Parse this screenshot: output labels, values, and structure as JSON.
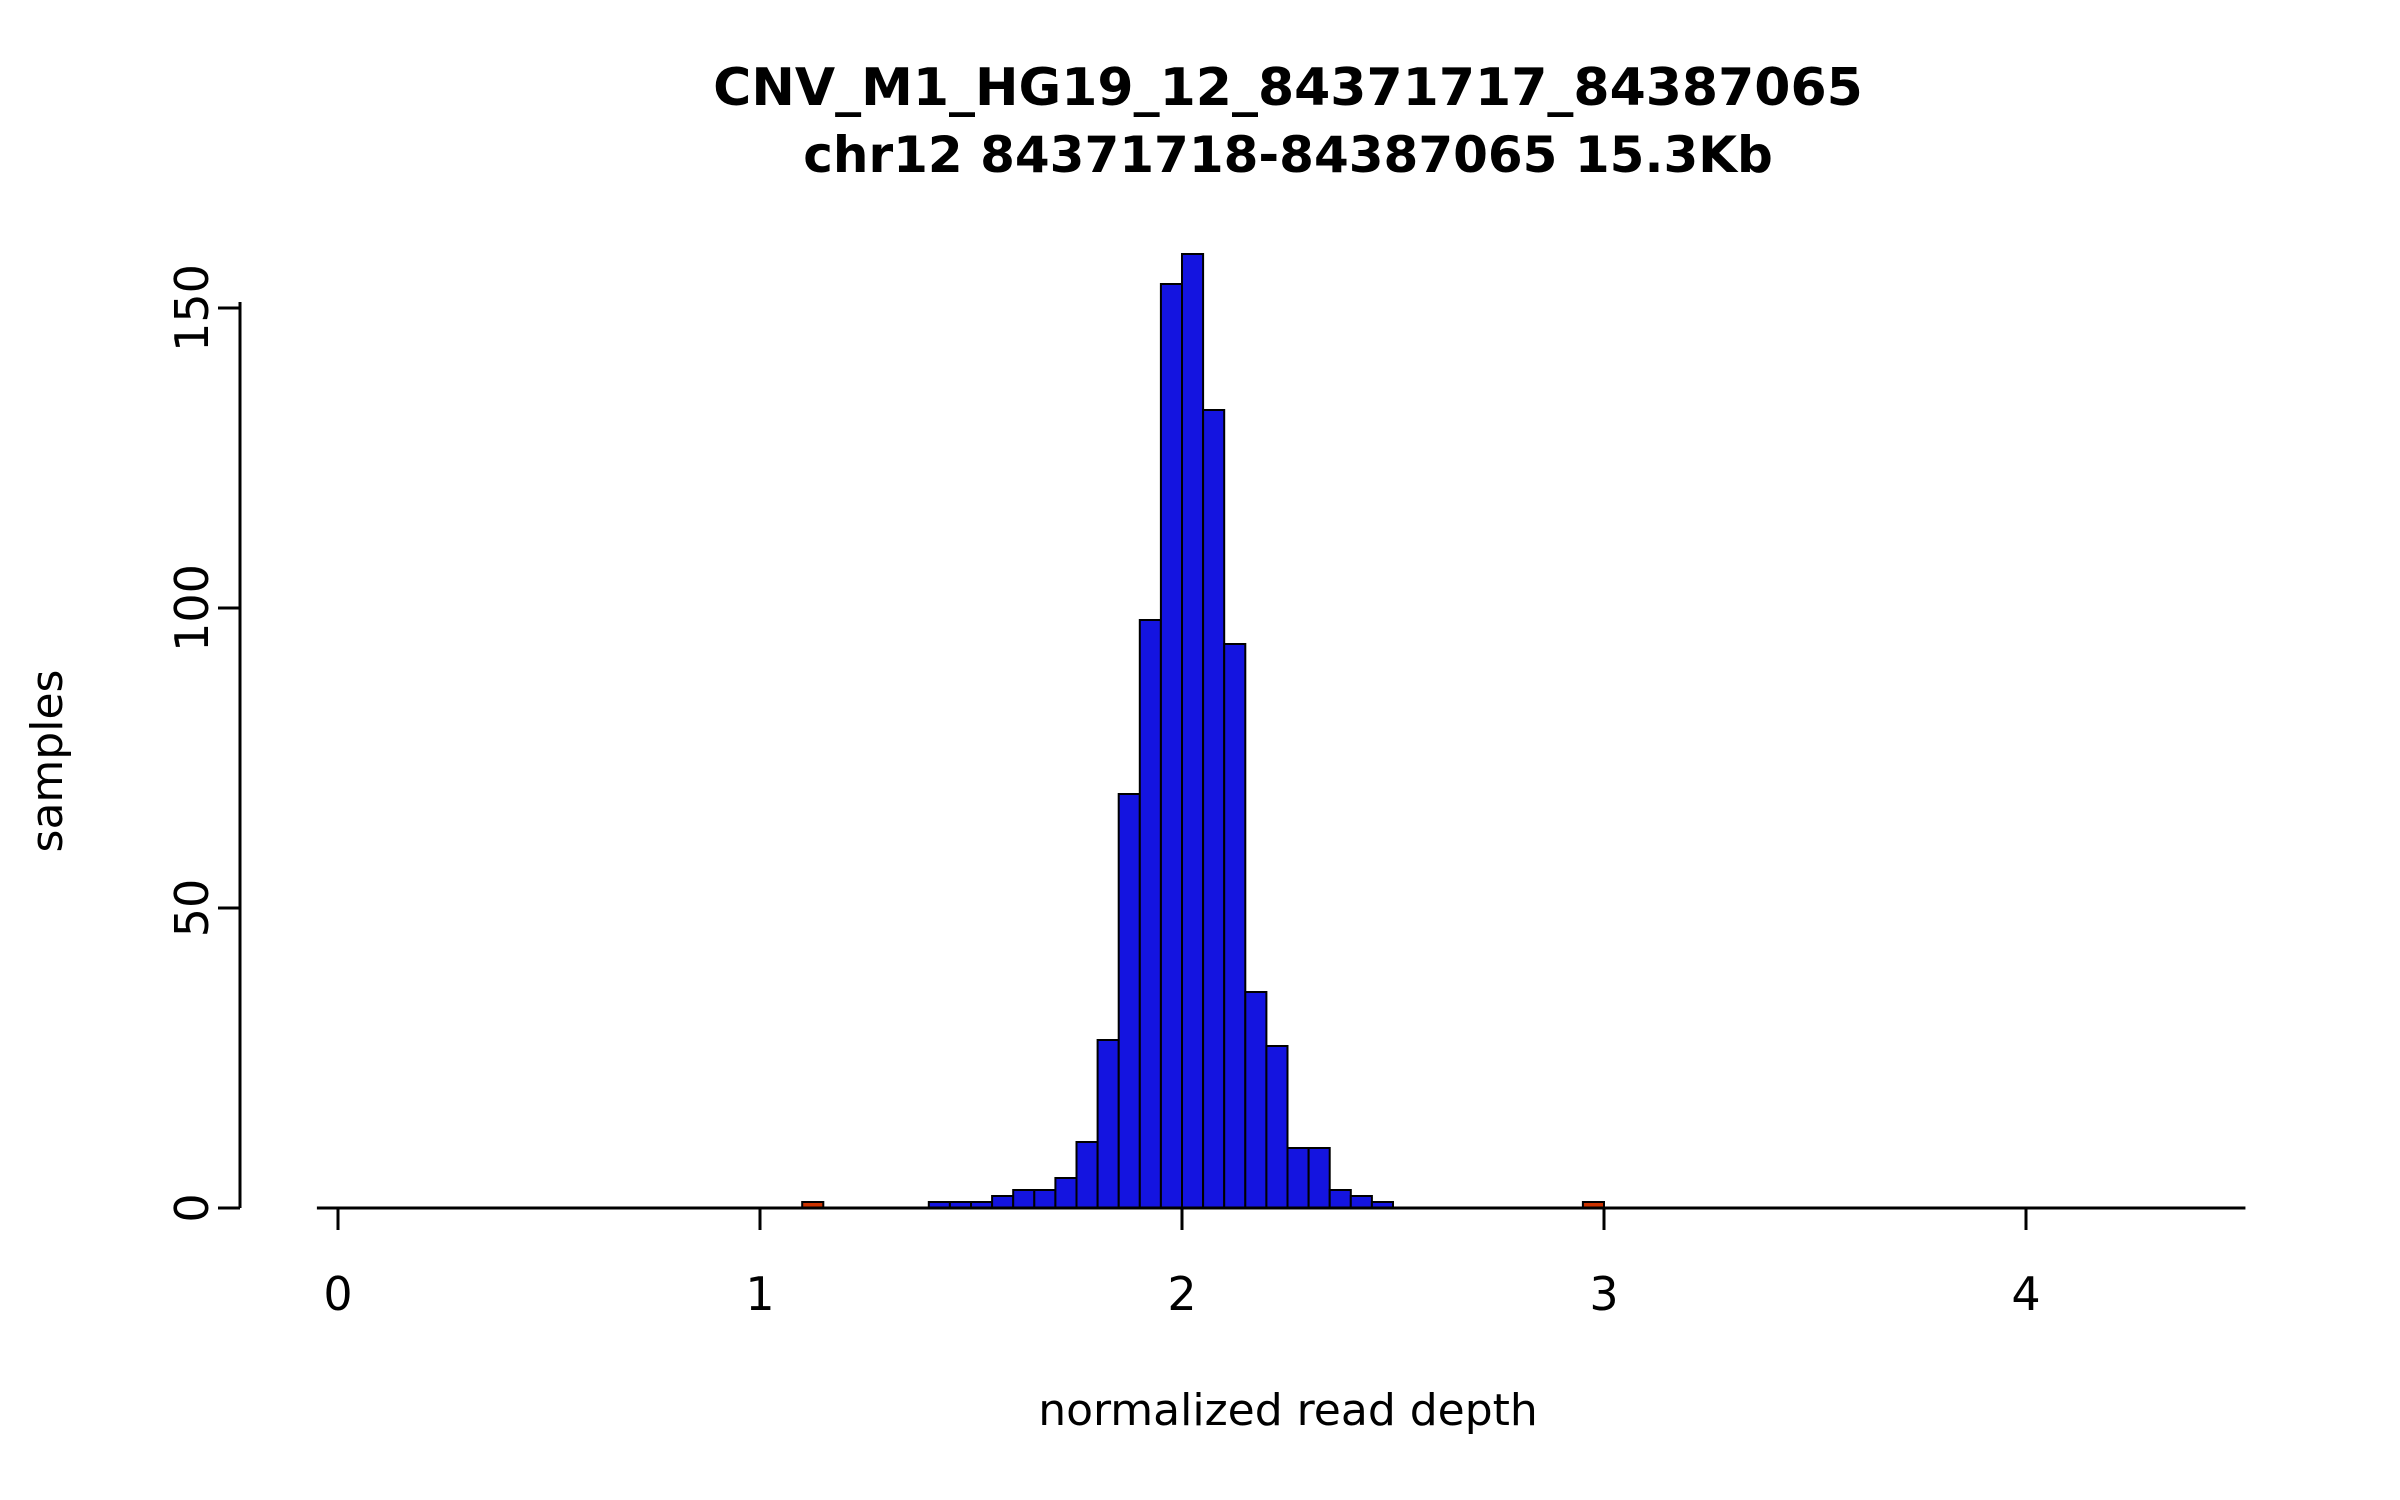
{
  "chart_data": {
    "type": "bar",
    "title": "CNV_M1_HG19_12_84371717_84387065",
    "subtitle": "chr12 84371718-84387065 15.3Kb",
    "xlabel": "normalized read depth",
    "ylabel": "samples",
    "xlim": [
      0,
      4.5
    ],
    "ylim": [
      0,
      160
    ],
    "x_ticks": [
      "0",
      "1",
      "2",
      "3",
      "4"
    ],
    "y_ticks": [
      "0",
      "50",
      "100",
      "150"
    ],
    "grid": false,
    "legend": "none",
    "bin_width": 0.05,
    "bar_color": "#1414e0",
    "highlight_color": "#cc3300",
    "axis_color": "#000000",
    "bins": [
      {
        "x": 1.1,
        "count": 1,
        "highlight": true
      },
      {
        "x": 1.4,
        "count": 1
      },
      {
        "x": 1.45,
        "count": 1
      },
      {
        "x": 1.5,
        "count": 1
      },
      {
        "x": 1.55,
        "count": 2
      },
      {
        "x": 1.6,
        "count": 3
      },
      {
        "x": 1.65,
        "count": 3
      },
      {
        "x": 1.7,
        "count": 5
      },
      {
        "x": 1.75,
        "count": 11
      },
      {
        "x": 1.8,
        "count": 28
      },
      {
        "x": 1.85,
        "count": 69
      },
      {
        "x": 1.9,
        "count": 98
      },
      {
        "x": 1.95,
        "count": 154
      },
      {
        "x": 2.0,
        "count": 159
      },
      {
        "x": 2.05,
        "count": 133
      },
      {
        "x": 2.1,
        "count": 94
      },
      {
        "x": 2.15,
        "count": 36
      },
      {
        "x": 2.2,
        "count": 27
      },
      {
        "x": 2.25,
        "count": 10
      },
      {
        "x": 2.3,
        "count": 10
      },
      {
        "x": 2.35,
        "count": 3
      },
      {
        "x": 2.4,
        "count": 2
      },
      {
        "x": 2.45,
        "count": 1
      },
      {
        "x": 2.95,
        "count": 1,
        "highlight": true
      }
    ]
  }
}
